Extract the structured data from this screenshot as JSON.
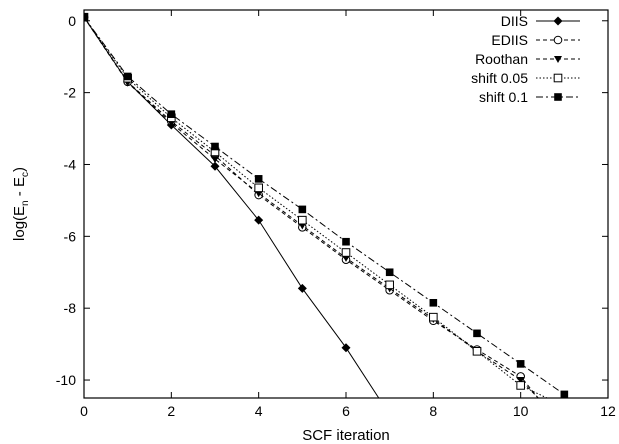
{
  "chart_data": {
    "type": "line",
    "xlabel": "SCF iteration",
    "ylabel": "log(E",
    "ylabel_sub1": "n",
    "ylabel_mid": " - E",
    "ylabel_sub2": "c",
    "ylabel_end": ")",
    "xlim": [
      0,
      12
    ],
    "ylim": [
      -10.5,
      0.3
    ],
    "x_ticks": [
      0,
      2,
      4,
      6,
      8,
      10,
      12
    ],
    "y_ticks": [
      0,
      -2,
      -4,
      -6,
      -8,
      -10
    ],
    "x_tick_labels": [
      "0",
      "2",
      "4",
      "6",
      "8",
      "10",
      "12"
    ],
    "y_tick_labels": [
      "0",
      "-2",
      "-4",
      "-6",
      "-8",
      "-10"
    ],
    "grid": false,
    "legend_position": "top-right",
    "series": [
      {
        "name": "DIIS",
        "line": "solid",
        "marker": "diamond-filled",
        "x": [
          0,
          1,
          2,
          3,
          4,
          5,
          6,
          6.75
        ],
        "y": [
          0.1,
          -1.7,
          -2.9,
          -4.05,
          -5.55,
          -7.45,
          -9.1,
          -10.5
        ]
      },
      {
        "name": "EDIIS",
        "line": "dashed",
        "marker": "circle-open",
        "x": [
          0,
          1,
          2,
          3,
          4,
          5,
          6,
          7,
          8,
          9,
          10,
          10.4
        ],
        "y": [
          0.1,
          -1.7,
          -2.8,
          -3.75,
          -4.85,
          -5.75,
          -6.65,
          -7.5,
          -8.35,
          -9.15,
          -9.9,
          -10.5
        ]
      },
      {
        "name": "Roothan",
        "line": "dashed",
        "marker": "triangle-down-filled",
        "x": [
          0,
          1,
          2,
          3,
          4,
          5,
          6,
          7,
          8,
          9,
          10,
          10.4
        ],
        "y": [
          0.1,
          -1.72,
          -2.85,
          -3.85,
          -4.8,
          -5.7,
          -6.6,
          -7.45,
          -8.3,
          -9.2,
          -10.0,
          -10.5
        ]
      },
      {
        "name": "shift 0.05",
        "line": "dotted",
        "marker": "square-open",
        "x": [
          0,
          1,
          2,
          3,
          4,
          5,
          6,
          7,
          8,
          9,
          10,
          10.6
        ],
        "y": [
          0.1,
          -1.6,
          -2.7,
          -3.65,
          -4.65,
          -5.55,
          -6.45,
          -7.35,
          -8.25,
          -9.2,
          -10.15,
          -10.5
        ]
      },
      {
        "name": "shift 0.1",
        "line": "dash-dot",
        "marker": "square-filled",
        "x": [
          0,
          1,
          2,
          3,
          4,
          5,
          6,
          7,
          8,
          9,
          10,
          11
        ],
        "y": [
          0.1,
          -1.55,
          -2.6,
          -3.5,
          -4.4,
          -5.25,
          -6.15,
          -7.0,
          -7.85,
          -8.7,
          -9.55,
          -10.4
        ]
      }
    ]
  }
}
